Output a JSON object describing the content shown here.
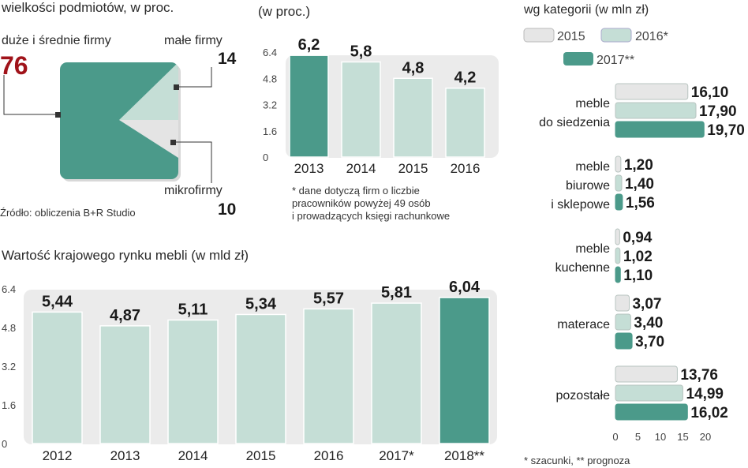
{
  "pie": {
    "subtitle": "wielkości podmiotów, w proc.",
    "source": "Źródło: obliczenia B+R Studio",
    "labels": {
      "large": "duże i średnie firmy",
      "small": "małe firmy",
      "micro": "mikrofirmy"
    },
    "colors": {
      "large": "#4b9a8a",
      "small": "#c5ded6",
      "micro": "#e4e4e4"
    }
  },
  "mid": {
    "subtitle": "(w proc.)",
    "footnote": [
      "* dane dotyczą firm o liczbie",
      "pracowników powyżej 49 osób",
      "i prowadzących księgi rachunkowe"
    ]
  },
  "bottom": {
    "title": "Wartość krajowego rynku mebli (w mld zł)"
  },
  "right": {
    "subtitle": "wg kategorii (w mln zł)",
    "legend": [
      "2015",
      "2016*",
      "2017**"
    ],
    "footnote": "* szacunki, ** prognoza",
    "colors": [
      "#e6e6e6",
      "#c5ded6",
      "#4b9a8a"
    ]
  },
  "chart_data": [
    {
      "type": "pie",
      "title": "wielkości podmiotów, w proc.",
      "categories": [
        "duże i średnie firmy",
        "małe firmy",
        "mikrofirmy"
      ],
      "values": [
        76,
        14,
        10
      ]
    },
    {
      "type": "bar",
      "title": "(w proc.)",
      "categories": [
        "2013",
        "2014",
        "2015",
        "2016"
      ],
      "values": [
        6.2,
        5.8,
        4.8,
        4.2
      ],
      "value_labels": [
        "6,2",
        "5,8",
        "4,8",
        "4,2"
      ],
      "ylim": [
        0,
        6.4
      ],
      "yticks": [
        "6.4",
        "4.8",
        "3.2",
        "1.6",
        "0"
      ],
      "highlight_index": 0
    },
    {
      "type": "bar",
      "title": "Wartość krajowego rynku mebli (w mld zł)",
      "categories": [
        "2012",
        "2013",
        "2014",
        "2015",
        "2016",
        "2017*",
        "2018**"
      ],
      "values": [
        5.44,
        4.87,
        5.11,
        5.34,
        5.57,
        5.81,
        6.04
      ],
      "value_labels": [
        "5,44",
        "4,87",
        "5,11",
        "5,34",
        "5,57",
        "5,81",
        "6,04"
      ],
      "ylim": [
        0,
        6.4
      ],
      "yticks": [
        "6.4",
        "4.8",
        "3.2",
        "1.6",
        "0"
      ],
      "highlight_index": 6
    },
    {
      "type": "bar",
      "orientation": "horizontal",
      "title": "wg kategorii (w mln zł)",
      "series_names": [
        "2015",
        "2016*",
        "2017**"
      ],
      "xlim": [
        0,
        20
      ],
      "xticks": [
        "0",
        "5",
        "10",
        "15",
        "20"
      ],
      "groups": [
        {
          "label": [
            "meble",
            "do siedzenia"
          ],
          "values": [
            16.1,
            17.9,
            19.7
          ],
          "value_labels": [
            "16,10",
            "17,90",
            "19,70"
          ]
        },
        {
          "label": [
            "meble",
            "biurowe",
            "i sklepowe"
          ],
          "values": [
            1.2,
            1.4,
            1.56
          ],
          "value_labels": [
            "1,20",
            "1,40",
            "1,56"
          ]
        },
        {
          "label": [
            "meble",
            "kuchenne"
          ],
          "values": [
            0.94,
            1.02,
            1.1
          ],
          "value_labels": [
            "0,94",
            "1,02",
            "1,10"
          ]
        },
        {
          "label": [
            "materace"
          ],
          "values": [
            3.07,
            3.4,
            3.7
          ],
          "value_labels": [
            "3,07",
            "3,40",
            "3,70"
          ]
        },
        {
          "label": [
            "pozostałe"
          ],
          "values": [
            13.76,
            14.99,
            16.02
          ],
          "value_labels": [
            "13,76",
            "14,99",
            "16,02"
          ]
        }
      ]
    }
  ]
}
